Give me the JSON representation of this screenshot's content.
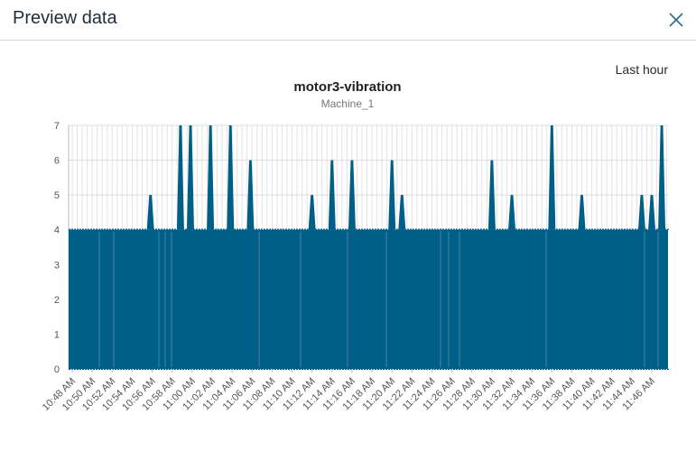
{
  "dialog": {
    "title": "Preview data",
    "close_icon": "close-icon"
  },
  "range_label": "Last hour",
  "chart_data": {
    "type": "line",
    "title": "motor3-vibration",
    "subtitle": "Machine_1",
    "ylim": [
      0,
      7
    ],
    "y_ticks": [
      "0",
      "1",
      "2",
      "3",
      "4",
      "5",
      "6",
      "7"
    ],
    "x_ticks": [
      "10:48 AM",
      "10:50 AM",
      "10:52 AM",
      "10:54 AM",
      "10:56 AM",
      "10:58 AM",
      "11:00 AM",
      "11:02 AM",
      "11:04 AM",
      "11:06 AM",
      "11:08 AM",
      "11:10 AM",
      "11:12 AM",
      "11:14 AM",
      "11:16 AM",
      "11:18 AM",
      "11:20 AM",
      "11:22 AM",
      "11:24 AM",
      "11:26 AM",
      "11:28 AM",
      "11:30 AM",
      "11:32 AM",
      "11:34 AM",
      "11:36 AM",
      "11:38 AM",
      "11:40 AM",
      "11:42 AM",
      "11:44 AM",
      "11:46 AM"
    ],
    "grid": true,
    "series": [
      {
        "color": "#005f87",
        "band": {
          "low": 0,
          "high": 4
        },
        "spikes": [
          {
            "x": "10:55:50 AM",
            "y": 5
          },
          {
            "x": "10:58:50 AM",
            "y": 7
          },
          {
            "x": "10:59:50 AM",
            "y": 7
          },
          {
            "x": "11:01:50 AM",
            "y": 7
          },
          {
            "x": "11:03:50 AM",
            "y": 7
          },
          {
            "x": "11:05:50 AM",
            "y": 6
          },
          {
            "x": "11:12:00 AM",
            "y": 5
          },
          {
            "x": "11:14:00 AM",
            "y": 6
          },
          {
            "x": "11:16:00 AM",
            "y": 6
          },
          {
            "x": "11:20:00 AM",
            "y": 6
          },
          {
            "x": "11:21:00 AM",
            "y": 5
          },
          {
            "x": "11:30:00 AM",
            "y": 6
          },
          {
            "x": "11:32:00 AM",
            "y": 5
          },
          {
            "x": "11:36:00 AM",
            "y": 7
          },
          {
            "x": "11:39:00 AM",
            "y": 5
          },
          {
            "x": "11:45:00 AM",
            "y": 5
          },
          {
            "x": "11:46:00 AM",
            "y": 5
          },
          {
            "x": "11:47:00 AM",
            "y": 7
          }
        ]
      }
    ]
  }
}
